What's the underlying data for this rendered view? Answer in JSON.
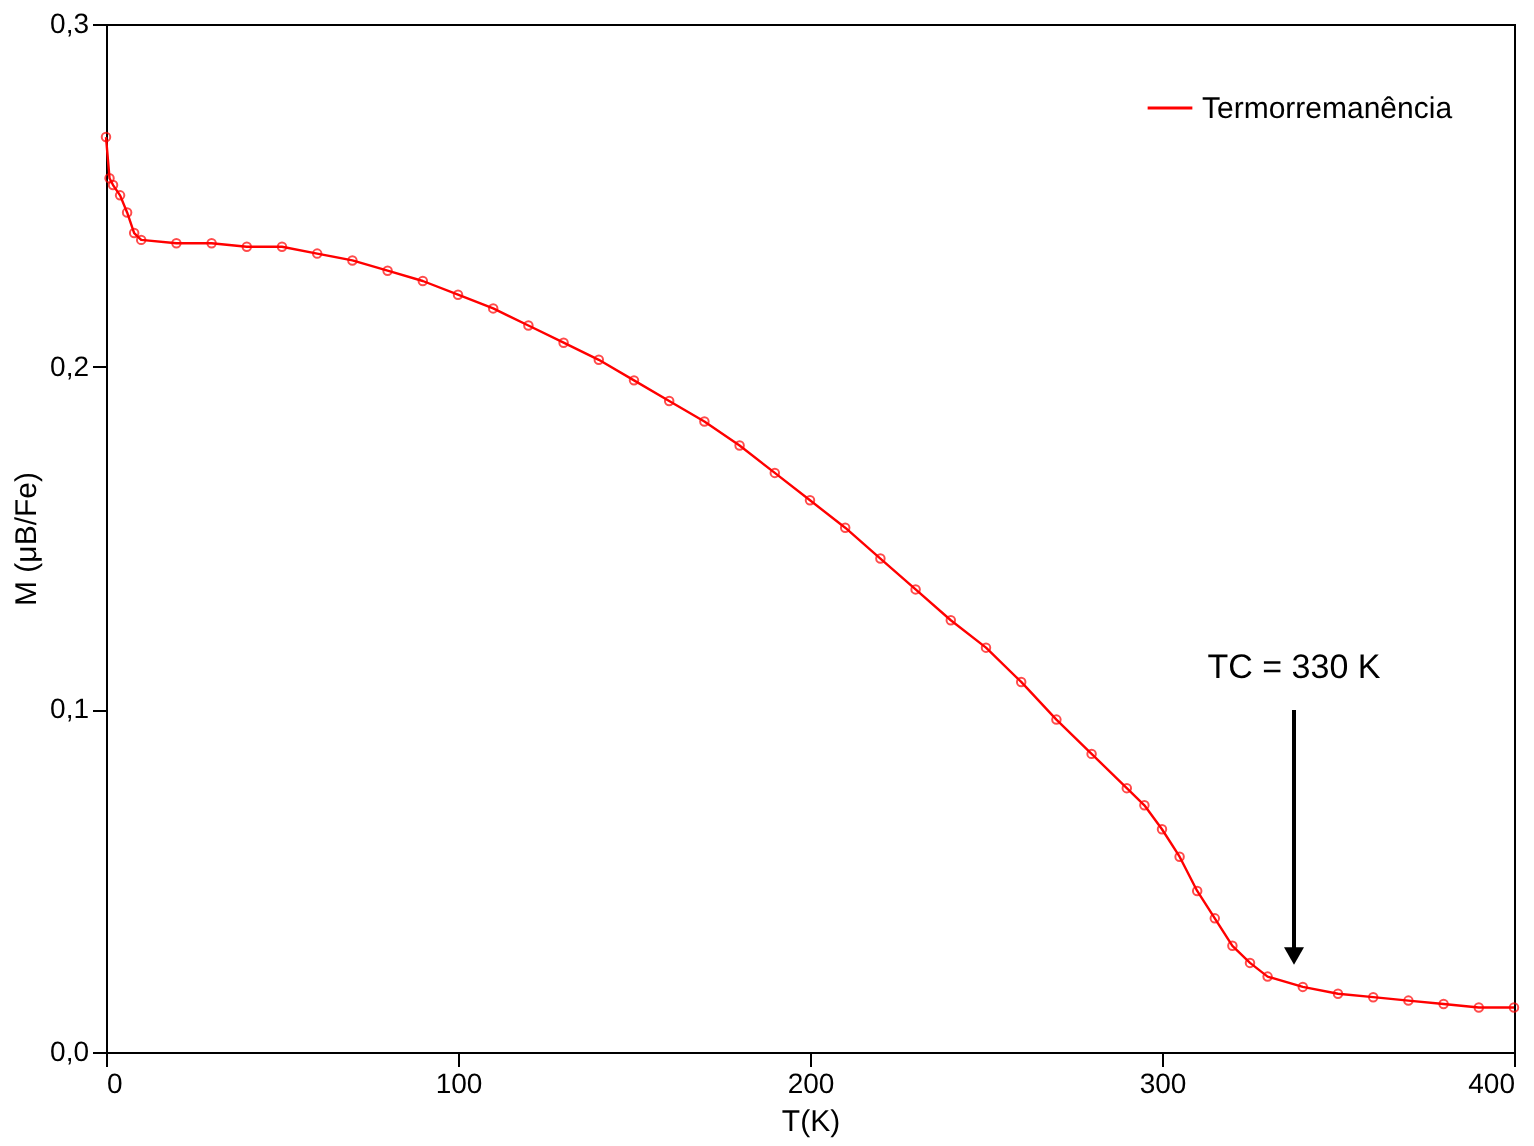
{
  "chart_data": {
    "type": "line",
    "xlabel": "T(K)",
    "ylabel": "M (μB/Fe)",
    "x": [
      0,
      1,
      2,
      4,
      6,
      8,
      10,
      20,
      30,
      40,
      50,
      60,
      70,
      80,
      90,
      100,
      110,
      120,
      130,
      140,
      150,
      160,
      170,
      180,
      190,
      200,
      210,
      220,
      230,
      240,
      250,
      260,
      270,
      280,
      290,
      295,
      300,
      305,
      310,
      315,
      320,
      325,
      330,
      340,
      350,
      360,
      370,
      380,
      390,
      400
    ],
    "series": [
      {
        "name": "Termorremanência",
        "color": "#ff0000",
        "values": [
          0.267,
          0.255,
          0.253,
          0.25,
          0.245,
          0.239,
          0.237,
          0.236,
          0.236,
          0.235,
          0.235,
          0.233,
          0.231,
          0.228,
          0.225,
          0.221,
          0.217,
          0.212,
          0.207,
          0.202,
          0.196,
          0.19,
          0.184,
          0.177,
          0.169,
          0.161,
          0.153,
          0.144,
          0.135,
          0.126,
          0.118,
          0.108,
          0.097,
          0.087,
          0.077,
          0.072,
          0.065,
          0.057,
          0.047,
          0.039,
          0.031,
          0.026,
          0.022,
          0.019,
          0.017,
          0.016,
          0.015,
          0.014,
          0.013,
          0.013
        ]
      }
    ],
    "xlim": [
      0,
      400
    ],
    "xticks": [
      0,
      100,
      200,
      300,
      400
    ],
    "ylim": [
      0,
      0.3
    ],
    "yticks": [
      {
        "value": 0,
        "label": "0,0"
      },
      {
        "value": 0.1,
        "label": "0,1"
      },
      {
        "value": 0.2,
        "label": "0,2"
      },
      {
        "value": 0.3,
        "label": "0,3"
      }
    ],
    "marker": "circle",
    "line_style": "solid",
    "grid": false,
    "legend": "top right",
    "annotations": [
      "TC = 330 K"
    ]
  }
}
